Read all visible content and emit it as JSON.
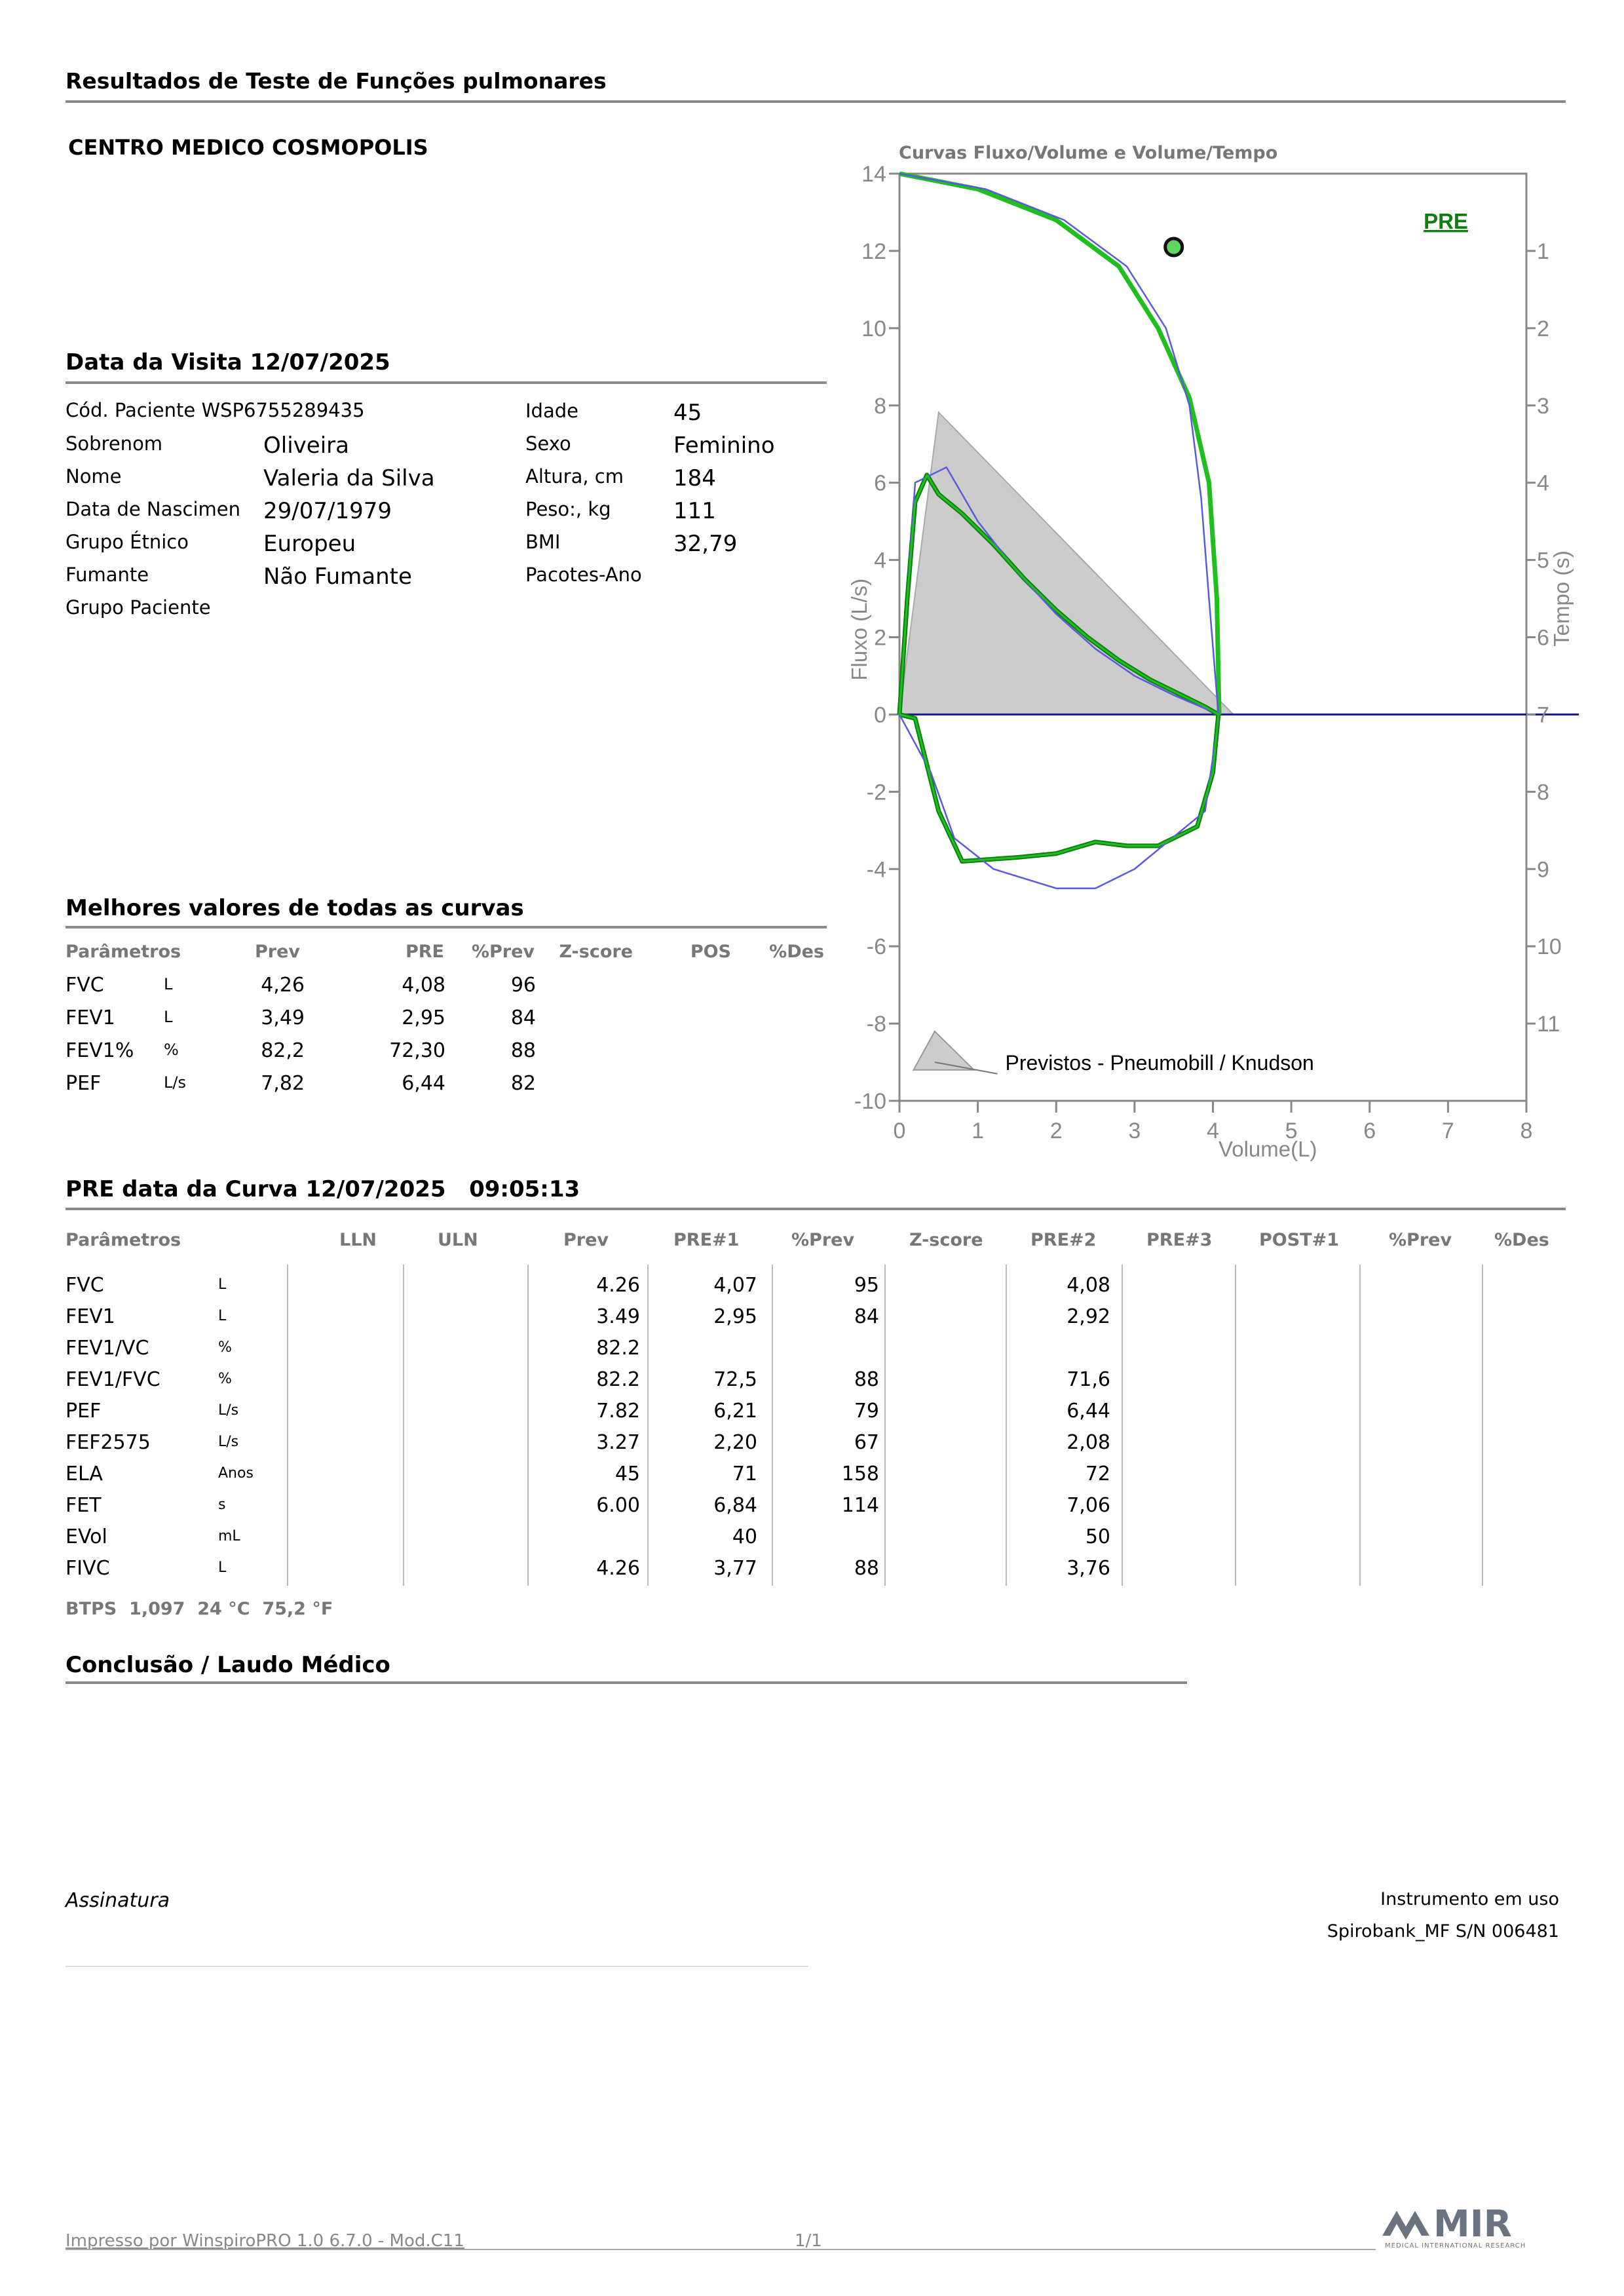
{
  "report_title": "Resultados de Teste de Funções pulmonares",
  "clinic_name": "CENTRO MEDICO COSMOPOLIS",
  "visit": {
    "title": "Data da Visita 12/07/2025",
    "patient_id": "Cód. Paciente WSP6755289435",
    "fields_left": [
      {
        "label": "Sobrenom",
        "value": "Oliveira"
      },
      {
        "label": "Nome",
        "value": "Valeria da Silva"
      },
      {
        "label": "Data de Nascimen",
        "value": "29/07/1979"
      },
      {
        "label": "Grupo Étnico",
        "value": "Europeu"
      },
      {
        "label": "Fumante",
        "value": "Não Fumante"
      },
      {
        "label": "Grupo Paciente",
        "value": ""
      }
    ],
    "fields_right": [
      {
        "label": "Idade",
        "value": "45"
      },
      {
        "label": "Sexo",
        "value": "Feminino"
      },
      {
        "label": "Altura, cm",
        "value": "184"
      },
      {
        "label": "Peso:, kg",
        "value": "111"
      },
      {
        "label": "BMI",
        "value": "32,79"
      },
      {
        "label": "Pacotes-Ano",
        "value": ""
      }
    ]
  },
  "best": {
    "title": "Melhores valores de todas as curvas",
    "headers": [
      "Parâmetros",
      "Prev",
      "PRE",
      "%Prev",
      "Z-score",
      "POS",
      "%Des"
    ],
    "rows": [
      {
        "param": "FVC",
        "unit": "L",
        "prev": "4,26",
        "pre": "4,08",
        "pct": "96"
      },
      {
        "param": "FEV1",
        "unit": "L",
        "prev": "3,49",
        "pre": "2,95",
        "pct": "84"
      },
      {
        "param": "FEV1%",
        "unit": "%",
        "prev": "82,2",
        "pre": "72,30",
        "pct": "88"
      },
      {
        "param": "PEF",
        "unit": "L/s",
        "prev": "7,82",
        "pre": "6,44",
        "pct": "82"
      }
    ]
  },
  "curve": {
    "title": "PRE data da Curva 12/07/2025   09:05:13",
    "headers": [
      "Parâmetros",
      "LLN",
      "ULN",
      "Prev",
      "PRE#1",
      "%Prev",
      "Z-score",
      "PRE#2",
      "PRE#3",
      "POST#1",
      "%Prev",
      "%Des"
    ],
    "rows": [
      {
        "param": "FVC",
        "unit": "L",
        "prev": "4.26",
        "pre1": "4,07",
        "pct": "95",
        "pre2": "4,08"
      },
      {
        "param": "FEV1",
        "unit": "L",
        "prev": "3.49",
        "pre1": "2,95",
        "pct": "84",
        "pre2": "2,92"
      },
      {
        "param": "FEV1/VC",
        "unit": "%",
        "prev": "82.2",
        "pre1": "",
        "pct": "",
        "pre2": ""
      },
      {
        "param": "FEV1/FVC",
        "unit": "%",
        "prev": "82.2",
        "pre1": "72,5",
        "pct": "88",
        "pre2": "71,6"
      },
      {
        "param": "PEF",
        "unit": "L/s",
        "prev": "7.82",
        "pre1": "6,21",
        "pct": "79",
        "pre2": "6,44"
      },
      {
        "param": "FEF2575",
        "unit": "L/s",
        "prev": "3.27",
        "pre1": "2,20",
        "pct": "67",
        "pre2": "2,08"
      },
      {
        "param": "ELA",
        "unit": "Anos",
        "prev": "45",
        "pre1": "71",
        "pct": "158",
        "pre2": "72"
      },
      {
        "param": "FET",
        "unit": "s",
        "prev": "6.00",
        "pre1": "6,84",
        "pct": "114",
        "pre2": "7,06"
      },
      {
        "param": "EVol",
        "unit": "mL",
        "prev": "",
        "pre1": "40",
        "pct": "",
        "pre2": "50"
      },
      {
        "param": "FIVC",
        "unit": "L",
        "prev": "4.26",
        "pre1": "3,77",
        "pct": "88",
        "pre2": "3,76"
      }
    ],
    "btps": "BTPS  1,097  24 °C  75,2 °F"
  },
  "conclusion_title": "Conclusão / Laudo Médico",
  "signature_label": "Assinatura",
  "instrument_label": "Instrumento em uso",
  "instrument_value": "Spirobank_MF S/N 006481",
  "footer_left": "Impresso por WinspiroPRO 1.0 6.7.0 - Mod.C11",
  "footer_page": "1/1",
  "logo_text": "MIR",
  "logo_subtext": "MEDICAL INTERNATIONAL RESEARCH",
  "chart_data": {
    "type": "line",
    "title": "Curvas Fluxo/Volume e Volume/Tempo",
    "xlabel": "Volume(L)",
    "ylabel": "Fluxo (L/s)",
    "y2label": "Tempo (s)",
    "xlim": [
      0,
      8
    ],
    "ylim": [
      -10,
      14
    ],
    "y2lim": [
      0,
      11
    ],
    "x_ticks": [
      "0",
      "1",
      "2",
      "3",
      "4",
      "5",
      "6",
      "7",
      "8"
    ],
    "y_ticks": [
      "14",
      "12",
      "10",
      "8",
      "6",
      "4",
      "2",
      "0",
      "-2",
      "-4",
      "-6",
      "-8",
      "-10"
    ],
    "y2_ticks": [
      "1",
      "2",
      "3",
      "4",
      "5",
      "6",
      "7",
      "8",
      "9",
      "10",
      "11"
    ],
    "tag": "PRE",
    "legend_label": "Previstos - Pneumobill / Knudson",
    "colors": {
      "pre": "#1fbf1f",
      "pre_dark": "#0d7f0d",
      "other": "#5a5ae0",
      "predicted": "#cccccc",
      "axis": "#888888"
    },
    "predicted_area": [
      [
        0,
        0
      ],
      [
        0.5,
        7.82
      ],
      [
        4.26,
        0
      ]
    ],
    "series": [
      {
        "name": "PRE",
        "role": "flow_volume",
        "points": [
          [
            0,
            0
          ],
          [
            0.1,
            3.0
          ],
          [
            0.2,
            5.5
          ],
          [
            0.35,
            6.2
          ],
          [
            0.5,
            5.7
          ],
          [
            0.8,
            5.2
          ],
          [
            1.2,
            4.4
          ],
          [
            1.6,
            3.5
          ],
          [
            2.0,
            2.7
          ],
          [
            2.4,
            2.0
          ],
          [
            2.8,
            1.4
          ],
          [
            3.2,
            0.9
          ],
          [
            3.6,
            0.5
          ],
          [
            3.9,
            0.2
          ],
          [
            4.07,
            0
          ],
          [
            4.0,
            -1.5
          ],
          [
            3.8,
            -2.9
          ],
          [
            3.3,
            -3.4
          ],
          [
            2.9,
            -3.4
          ],
          [
            2.5,
            -3.3
          ],
          [
            2.0,
            -3.6
          ],
          [
            1.5,
            -3.7
          ],
          [
            0.8,
            -3.8
          ],
          [
            0.5,
            -2.5
          ],
          [
            0.2,
            -0.1
          ],
          [
            0,
            0
          ]
        ]
      },
      {
        "name": "",
        "role": "flow_volume_other",
        "points": [
          [
            0,
            0
          ],
          [
            0.2,
            6.0
          ],
          [
            0.6,
            6.4
          ],
          [
            1.0,
            5.0
          ],
          [
            1.5,
            3.7
          ],
          [
            2.0,
            2.6
          ],
          [
            2.5,
            1.7
          ],
          [
            3.0,
            1.0
          ],
          [
            3.5,
            0.5
          ],
          [
            4.08,
            0
          ],
          [
            3.9,
            -2.5
          ],
          [
            3.0,
            -4.0
          ],
          [
            2.5,
            -4.5
          ],
          [
            2.0,
            -4.5
          ],
          [
            1.2,
            -4.0
          ],
          [
            0.7,
            -3.2
          ],
          [
            0.4,
            -1.5
          ],
          [
            0,
            0
          ]
        ]
      },
      {
        "name": "PRE",
        "role": "volume_time",
        "points": [
          [
            0,
            0
          ],
          [
            1.0,
            0.2
          ],
          [
            2.0,
            0.6
          ],
          [
            2.8,
            1.2
          ],
          [
            3.3,
            2.0
          ],
          [
            3.7,
            2.9
          ],
          [
            3.95,
            4.0
          ],
          [
            4.05,
            5.5
          ],
          [
            4.08,
            7.0
          ]
        ]
      },
      {
        "name": "",
        "role": "volume_time_other",
        "points": [
          [
            0,
            0
          ],
          [
            1.1,
            0.2
          ],
          [
            2.1,
            0.6
          ],
          [
            2.9,
            1.2
          ],
          [
            3.4,
            2.0
          ],
          [
            3.7,
            3.0
          ],
          [
            3.85,
            4.2
          ],
          [
            3.95,
            5.5
          ],
          [
            4.07,
            7.0
          ]
        ]
      }
    ],
    "markers": [
      {
        "x": 3.5,
        "y": 12.1
      }
    ]
  }
}
